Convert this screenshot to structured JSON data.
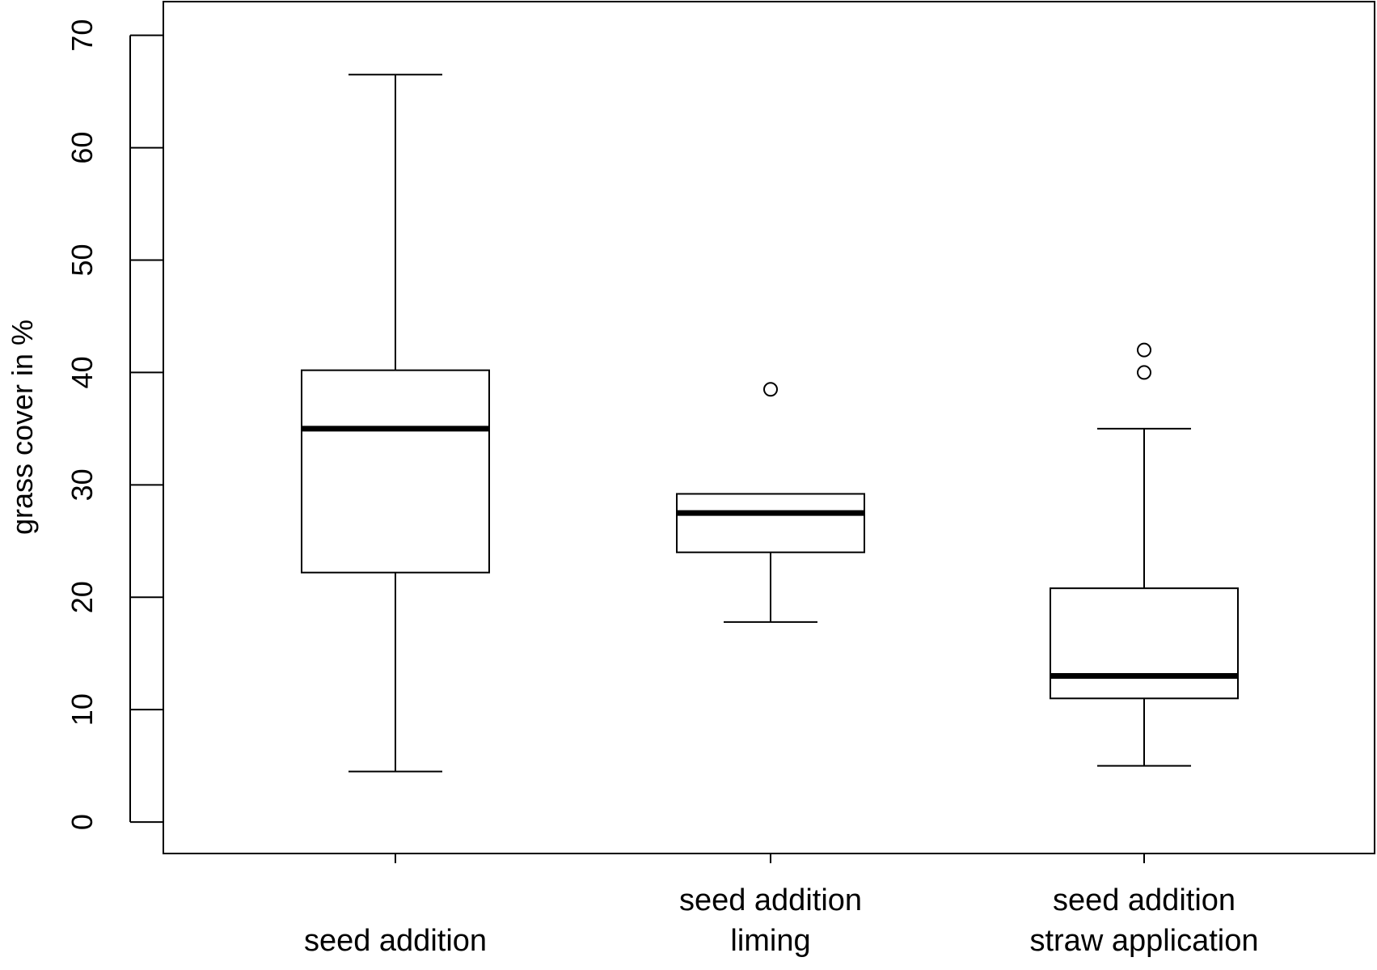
{
  "chart_data": {
    "type": "boxplot",
    "ylabel": "grass cover in %",
    "xlabel": "",
    "ylim": [
      -2.8,
      73
    ],
    "yticks": [
      0,
      10,
      20,
      30,
      40,
      50,
      60,
      70
    ],
    "grid": false,
    "categories": [
      {
        "lines": [
          "seed addition"
        ]
      },
      {
        "lines": [
          "seed addition",
          "liming"
        ]
      },
      {
        "lines": [
          "seed addition",
          "straw application"
        ]
      }
    ],
    "boxes": [
      {
        "whisker_low": 4.5,
        "q1": 22.2,
        "median": 35.0,
        "q3": 40.2,
        "whisker_high": 66.5,
        "outliers": []
      },
      {
        "whisker_low": 17.8,
        "q1": 24.0,
        "median": 27.5,
        "q3": 29.2,
        "whisker_high": 29.2,
        "outliers": [
          38.5
        ]
      },
      {
        "whisker_low": 5.0,
        "q1": 11.0,
        "median": 13.0,
        "q3": 20.8,
        "whisker_high": 35.0,
        "outliers": [
          40.0,
          42.0
        ]
      }
    ]
  }
}
